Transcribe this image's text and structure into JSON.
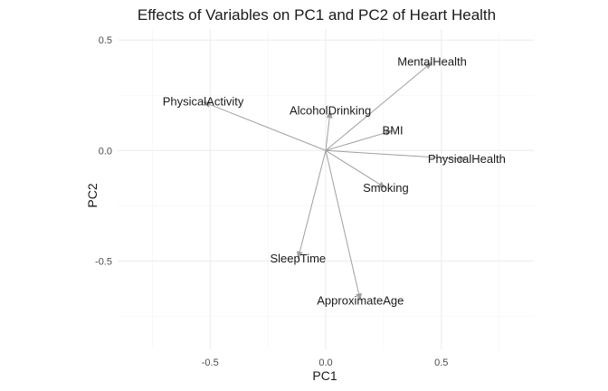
{
  "chart_data": {
    "type": "scatter",
    "subtype": "biplot-loadings",
    "title": "Effects of Variables on PC1 and PC2 of Heart Health",
    "xlabel": "PC1",
    "ylabel": "PC2",
    "xlim": [
      -0.9,
      0.9
    ],
    "ylim": [
      -0.9,
      0.55
    ],
    "xticks": [
      -0.5,
      0.0,
      0.5
    ],
    "yticks": [
      -0.5,
      0.0,
      0.5
    ],
    "xtick_labels": [
      "-0.5",
      "0.0",
      "0.5"
    ],
    "ytick_labels": [
      "-0.5",
      "0.0",
      "0.5"
    ],
    "grid": true,
    "origin": [
      0,
      0
    ],
    "arrow_color": "#a0a0a0",
    "points": [
      {
        "label": "MentalHealth",
        "x": 0.46,
        "y": 0.4
      },
      {
        "label": "PhysicalActivity",
        "x": -0.53,
        "y": 0.22
      },
      {
        "label": "AlcoholDrinking",
        "x": 0.02,
        "y": 0.18
      },
      {
        "label": "BMI",
        "x": 0.29,
        "y": 0.09
      },
      {
        "label": "PhysicalHealth",
        "x": 0.61,
        "y": -0.04
      },
      {
        "label": "Smoking",
        "x": 0.26,
        "y": -0.17
      },
      {
        "label": "SleepTime",
        "x": -0.12,
        "y": -0.49
      },
      {
        "label": "ApproximateAge",
        "x": 0.15,
        "y": -0.68
      }
    ]
  }
}
